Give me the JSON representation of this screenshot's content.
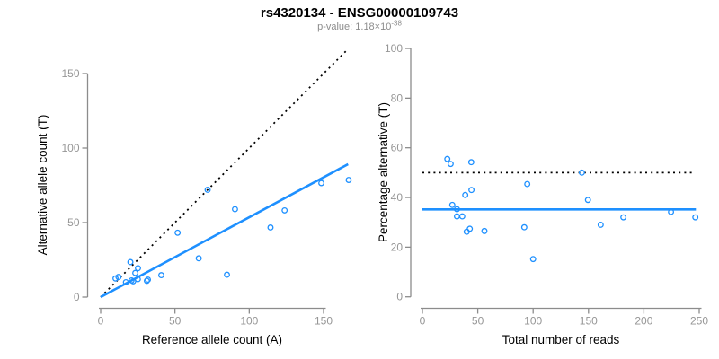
{
  "header": {
    "title": "rs4320134 - ENSG00000109743",
    "subtitle_prefix": "p-value: 1.18×10",
    "subtitle_exponent": "-38"
  },
  "colors": {
    "accent_blue": "#1E90FF",
    "dotted_black": "#000000",
    "axis_gray": "#8C8C8C",
    "tick_label_gray": "#969696",
    "subtitle_gray": "#8C8C8C"
  },
  "chart_data": [
    {
      "name": "allele-counts",
      "type": "scatter",
      "title": "",
      "xlabel": "Reference allele count (A)",
      "ylabel": "Alternative allele count (T)",
      "xticks": [
        0,
        50,
        100,
        150
      ],
      "yticks": [
        0,
        50,
        100,
        150
      ],
      "xlim": [
        0,
        170
      ],
      "ylim": [
        0,
        167
      ],
      "grid": false,
      "legend": null,
      "points": [
        [
          10.0,
          12.5
        ],
        [
          12.0,
          13.5
        ],
        [
          17.0,
          10.0
        ],
        [
          20.0,
          23.5
        ],
        [
          20.8,
          11.2
        ],
        [
          21.9,
          10.6
        ],
        [
          23.3,
          16.2
        ],
        [
          25.0,
          12.0
        ],
        [
          25.1,
          19.4
        ],
        [
          31.1,
          10.9
        ],
        [
          31.8,
          11.7
        ],
        [
          40.8,
          14.7
        ],
        [
          51.8,
          43.2
        ],
        [
          66.0,
          26.0
        ],
        [
          72.0,
          72.0
        ],
        [
          85.0,
          15.0
        ],
        [
          90.4,
          59.0
        ],
        [
          114.3,
          46.7
        ],
        [
          123.8,
          58.2
        ],
        [
          148.5,
          76.5
        ],
        [
          166.9,
          78.6
        ]
      ],
      "lines": [
        {
          "name": "identity-line",
          "style": "dotted",
          "color": "#000000",
          "from": [
            0,
            0
          ],
          "to": [
            165.5,
            165.5
          ]
        },
        {
          "name": "regression-line",
          "style": "solid",
          "color": "#1E90FF",
          "from": [
            0,
            0
          ],
          "to": [
            166.5,
            89.2
          ]
        }
      ]
    },
    {
      "name": "percentage-alternative",
      "type": "scatter",
      "title": "",
      "xlabel": "Total number of reads",
      "ylabel": "Percentage alternative (T)",
      "xticks": [
        0,
        50,
        100,
        150,
        200,
        250
      ],
      "yticks": [
        0,
        20,
        40,
        60,
        80,
        100
      ],
      "xlim": [
        0,
        250
      ],
      "ylim": [
        0,
        100
      ],
      "grid": false,
      "legend": null,
      "points": [
        [
          22.5,
          55.5
        ],
        [
          25.5,
          53.5
        ],
        [
          27.0,
          37.0
        ],
        [
          31.2,
          35.3
        ],
        [
          31.2,
          32.4
        ],
        [
          36.0,
          32.4
        ],
        [
          38.7,
          41.0
        ],
        [
          40.0,
          26.2
        ],
        [
          42.8,
          27.4
        ],
        [
          44.1,
          54.2
        ],
        [
          44.3,
          43.0
        ],
        [
          56.0,
          26.5
        ],
        [
          92.0,
          28.0
        ],
        [
          94.7,
          45.4
        ],
        [
          100.0,
          15.2
        ],
        [
          144.0,
          50.0
        ],
        [
          149.5,
          39.0
        ],
        [
          161.0,
          29.0
        ],
        [
          181.5,
          32.0
        ],
        [
          224.5,
          34.2
        ],
        [
          246.5,
          32.0
        ]
      ],
      "lines": [
        {
          "name": "expected-50pct-line",
          "style": "dotted",
          "color": "#000000",
          "from": [
            0,
            50
          ],
          "to": [
            243.5,
            50
          ]
        },
        {
          "name": "mean-percentage-line",
          "style": "solid",
          "color": "#1E90FF",
          "from": [
            0,
            35.2
          ],
          "to": [
            247.0,
            35.2
          ]
        }
      ]
    }
  ]
}
